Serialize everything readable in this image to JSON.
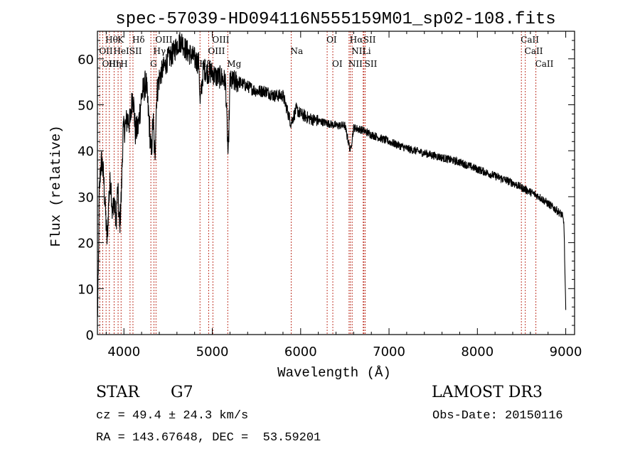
{
  "chart_data": {
    "type": "line",
    "title": "spec-57039-HD094116N555159M01_sp02-108.fits",
    "xlabel": "Wavelength (Å)",
    "ylabel": "Flux (relative)",
    "xlim": [
      3700,
      9100
    ],
    "ylim": [
      0,
      66
    ],
    "x_ticks": [
      4000,
      5000,
      6000,
      7000,
      8000,
      9000
    ],
    "x_tick_labels": [
      "4000",
      "5000",
      "6000",
      "7000",
      "8000",
      "9000"
    ],
    "y_ticks": [
      0,
      10,
      20,
      30,
      40,
      50,
      60
    ],
    "y_tick_labels": [
      "0",
      "10",
      "20",
      "30",
      "40",
      "50",
      "60"
    ],
    "grid": false,
    "series": [
      {
        "name": "spectrum",
        "anchors_x": [
          3700,
          3710,
          3720,
          3735,
          3750,
          3770,
          3790,
          3810,
          3830,
          3850,
          3870,
          3890,
          3910,
          3930,
          3950,
          3970,
          3990,
          4010,
          4040,
          4070,
          4100,
          4130,
          4160,
          4200,
          4250,
          4290,
          4310,
          4330,
          4350,
          4370,
          4400,
          4450,
          4500,
          4550,
          4600,
          4650,
          4700,
          4750,
          4800,
          4850,
          4861,
          4900,
          4950,
          5000,
          5050,
          5100,
          5150,
          5180,
          5200,
          5250,
          5300,
          5400,
          5500,
          5600,
          5700,
          5800,
          5890,
          5950,
          6000,
          6100,
          6200,
          6300,
          6400,
          6500,
          6563,
          6600,
          6700,
          6800,
          7000,
          7200,
          7400,
          7600,
          7800,
          8000,
          8200,
          8400,
          8500,
          8600,
          8700,
          8800,
          8900,
          8960,
          8980,
          9000
        ],
        "anchors_y": [
          3,
          12,
          30,
          36,
          38,
          34,
          27,
          20,
          30,
          34,
          26,
          30,
          24,
          32,
          23,
          30,
          44,
          45,
          47,
          46,
          53,
          44,
          45,
          52,
          55,
          45,
          39,
          47,
          38,
          52,
          56,
          58,
          60,
          61,
          63,
          64,
          62,
          61,
          60,
          59,
          50,
          58,
          57,
          57,
          56,
          56,
          55,
          38,
          55,
          55,
          55,
          54,
          53,
          53,
          52,
          52,
          46,
          49,
          48,
          47,
          46.5,
          46,
          45.5,
          45.5,
          40,
          45,
          44.5,
          43.5,
          42,
          40.5,
          39.5,
          38.5,
          37.5,
          36,
          34.5,
          33,
          32,
          31,
          30,
          28.5,
          27,
          26,
          24,
          5
        ]
      }
    ],
    "lines": [
      {
        "name": "CaII K",
        "x": 3934
      },
      {
        "name": "CaII H",
        "x": 3968
      },
      {
        "name": "H-theta",
        "x": 3798
      },
      {
        "name": "H-eta",
        "x": 3835
      },
      {
        "name": "OII",
        "x": 3727
      },
      {
        "name": "OIII",
        "x": 3760
      },
      {
        "name": "HeI",
        "x": 3889
      },
      {
        "name": "SII",
        "x": 4069
      },
      {
        "name": "H-delta",
        "x": 4102
      },
      {
        "name": "G",
        "x": 4305
      },
      {
        "name": "H-gamma",
        "x": 4340
      },
      {
        "name": "OIII",
        "x": 4363
      },
      {
        "name": "H-beta",
        "x": 4861
      },
      {
        "name": "OIII",
        "x": 4959
      },
      {
        "name": "OIII",
        "x": 5007
      },
      {
        "name": "Mg",
        "x": 5175
      },
      {
        "name": "Na",
        "x": 5893
      },
      {
        "name": "OI",
        "x": 6300
      },
      {
        "name": "OI",
        "x": 6364
      },
      {
        "name": "NII",
        "x": 6548
      },
      {
        "name": "H-alpha",
        "x": 6563
      },
      {
        "name": "NII",
        "x": 6583
      },
      {
        "name": "Li",
        "x": 6708
      },
      {
        "name": "SII",
        "x": 6716
      },
      {
        "name": "SII",
        "x": 6731
      },
      {
        "name": "CaII",
        "x": 8498
      },
      {
        "name": "CaII",
        "x": 8542
      },
      {
        "name": "CaII",
        "x": 8662
      }
    ],
    "line_labels": [
      {
        "text": "Hθ",
        "x": 3798,
        "row": 0
      },
      {
        "text": "K",
        "x": 3934,
        "row": 0
      },
      {
        "text": "Hδ",
        "x": 4102,
        "row": 0
      },
      {
        "text": "OIII",
        "x": 4363,
        "row": 0
      },
      {
        "text": "OIII",
        "x": 5007,
        "row": 0
      },
      {
        "text": "OI",
        "x": 6300,
        "row": 0
      },
      {
        "text": "Hα",
        "x": 6563,
        "row": 0
      },
      {
        "text": "SII",
        "x": 6716,
        "row": 0
      },
      {
        "text": "CaII",
        "x": 8498,
        "row": 0
      },
      {
        "text": "OII",
        "x": 3727,
        "row": 1
      },
      {
        "text": "HeI",
        "x": 3889,
        "row": 1
      },
      {
        "text": "SII",
        "x": 4069,
        "row": 1
      },
      {
        "text": "Hγ",
        "x": 4340,
        "row": 1
      },
      {
        "text": "OIII",
        "x": 4959,
        "row": 1
      },
      {
        "text": "NII",
        "x": 6583,
        "row": 1
      },
      {
        "text": "Li",
        "x": 6708,
        "row": 1
      },
      {
        "text": "CaII",
        "x": 8542,
        "row": 1
      },
      {
        "text": "OIII",
        "x": 3760,
        "row": 2
      },
      {
        "text": "Hη",
        "x": 3835,
        "row": 2
      },
      {
        "text": "H",
        "x": 3968,
        "row": 2
      },
      {
        "text": "G",
        "x": 4305,
        "row": 2
      },
      {
        "text": "Hβ",
        "x": 4861,
        "row": 2
      },
      {
        "text": "Mg",
        "x": 5175,
        "row": 2
      },
      {
        "text": "Na",
        "x": 5893,
        "row": 1
      },
      {
        "text": "OI",
        "x": 6364,
        "row": 2
      },
      {
        "text": "NII",
        "x": 6548,
        "row": 2
      },
      {
        "text": "SII",
        "x": 6731,
        "row": 2
      },
      {
        "text": "CaII",
        "x": 8662,
        "row": 2
      }
    ]
  },
  "info": {
    "object_type": "STAR",
    "subclass": "G7",
    "survey": "LAMOST DR3",
    "cz": "cz = 49.4 ± 24.3 km/s",
    "obs_date": "Obs-Date: 20150116",
    "coords": "RA = 143.67648, DEC =  53.59201"
  },
  "colors": {
    "line_marker": "#c0392b",
    "spectrum": "#000000",
    "axis": "#000000"
  }
}
